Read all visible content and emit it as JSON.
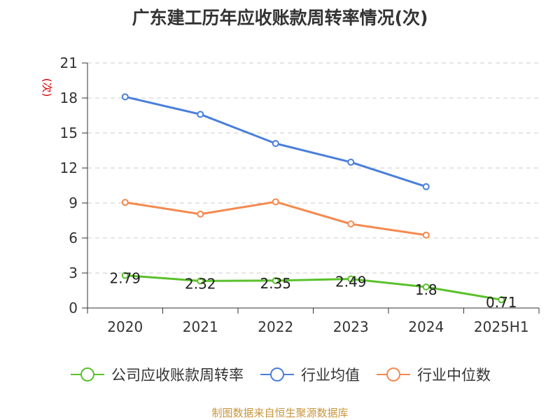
{
  "source_text": "制图数据来自恒生聚源数据库",
  "chart_data": {
    "type": "line",
    "title": "广东建工历年应收账款周转率情况(次)",
    "ylabel": "(次)",
    "xlabel": "",
    "categories": [
      "2020",
      "2021",
      "2022",
      "2023",
      "2024",
      "2025H1"
    ],
    "ylim": [
      0,
      21
    ],
    "yticks": [
      0,
      3,
      6,
      9,
      12,
      15,
      18,
      21
    ],
    "grid": true,
    "legend_position": "bottom",
    "series": [
      {
        "name": "公司应收账款周转率",
        "color": "#5ac12a",
        "values": [
          2.79,
          2.32,
          2.35,
          2.49,
          1.8,
          0.71
        ],
        "labels": [
          "2.79",
          "2.32",
          "2.35",
          "2.49",
          "1.8",
          "0.71"
        ]
      },
      {
        "name": "行业均值",
        "color": "#4a7fdc",
        "values": [
          18.1,
          16.6,
          14.1,
          12.5,
          10.4,
          null
        ]
      },
      {
        "name": "行业中位数",
        "color": "#f5894f",
        "values": [
          9.05,
          8.05,
          9.1,
          7.2,
          6.25,
          null
        ]
      }
    ]
  }
}
